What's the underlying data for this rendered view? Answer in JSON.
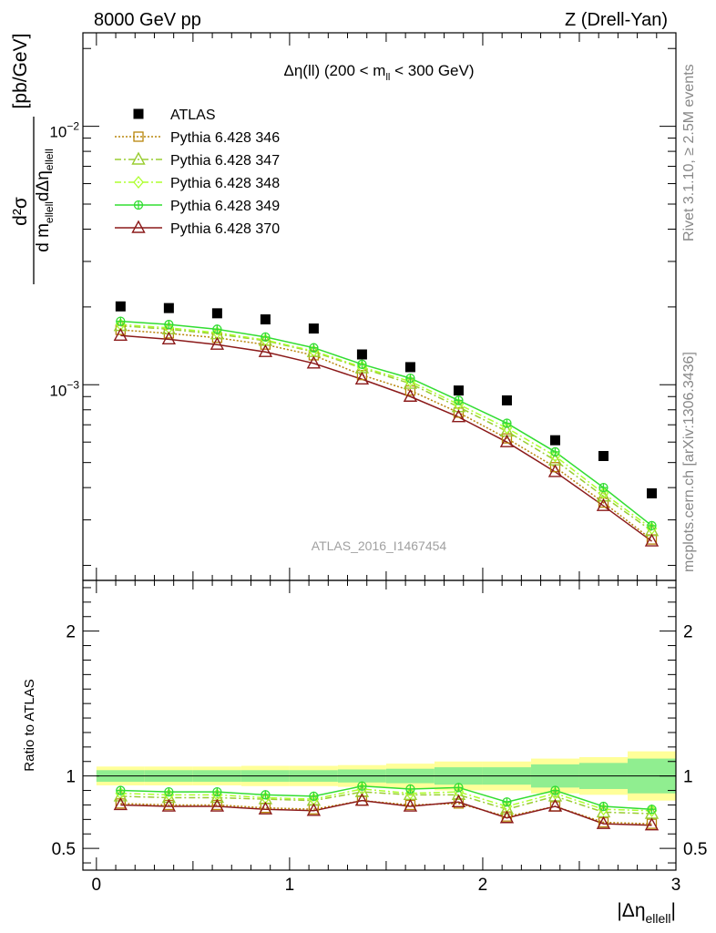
{
  "header": {
    "left": "8000 GeV pp",
    "right": "Z (Drell-Yan)"
  },
  "side_text": {
    "rivet": "Rivet 3.1.10, ≥ 2.5M events",
    "mcplots": "mcplots.cern.ch [arXiv:1306.3436]"
  },
  "chart_data": [
    {
      "type": "scatter",
      "title_parts": [
        "Δη(ll) (200 < m",
        "ll",
        " < 300 GeV)"
      ],
      "watermark": "ATLAS_2016_I1467454",
      "ylabel_parts": {
        "num": "d²σ",
        "den_prefix": "d m",
        "den_sub1": "ellell",
        "den_mid": "dΔη",
        "den_sub2": "ellell",
        "unit": "[pb/GeV]"
      },
      "y_scale": "log",
      "ylim": [
        0.000175,
        0.023
      ],
      "xlim": [
        -0.07,
        3.0
      ],
      "y_tick_labels": [
        {
          "base": "10",
          "exp": "−3",
          "value": 0.001
        },
        {
          "base": "10",
          "exp": "−2",
          "value": 0.01
        }
      ],
      "legend_position": "top-left",
      "x": [
        0.125,
        0.375,
        0.625,
        0.875,
        1.125,
        1.375,
        1.625,
        1.875,
        2.125,
        2.375,
        2.625,
        2.875
      ],
      "series": [
        {
          "name": "ATLAS",
          "color": "#000000",
          "marker": "square-filled",
          "line": "none",
          "values": [
            0.00201,
            0.00198,
            0.00189,
            0.00179,
            0.00165,
            0.00131,
            0.00117,
            0.00095,
            0.00087,
            0.00061,
            0.00053,
            0.00038
          ]
        },
        {
          "name": "Pythia 6.428 346",
          "color": "#b8860b",
          "marker": "square-open",
          "line": "dotted",
          "values": [
            0.00163,
            0.00158,
            0.00152,
            0.00143,
            0.0013,
            0.00109,
            0.00095,
            0.00078,
            0.00062,
            0.00048,
            0.00035,
            0.000252
          ]
        },
        {
          "name": "Pythia 6.428 347",
          "color": "#9acd32",
          "marker": "triangle-open",
          "line": "dashdot",
          "values": [
            0.00169,
            0.00164,
            0.00157,
            0.00148,
            0.00134,
            0.00116,
            0.00101,
            0.00082,
            0.00066,
            0.00051,
            0.00037,
            0.000272
          ]
        },
        {
          "name": "Pythia 6.428 348",
          "color": "#adff2f",
          "marker": "diamond-open",
          "line": "dashdot",
          "values": [
            0.00171,
            0.00166,
            0.00159,
            0.00149,
            0.00135,
            0.00117,
            0.00103,
            0.00084,
            0.00068,
            0.00053,
            0.00038,
            0.000278
          ]
        },
        {
          "name": "Pythia 6.428 349",
          "color": "#32dd32",
          "marker": "cross-circle",
          "line": "solid",
          "values": [
            0.00176,
            0.00171,
            0.00164,
            0.00153,
            0.00139,
            0.0012,
            0.00106,
            0.00087,
            0.00071,
            0.00055,
            0.0004,
            0.000285
          ]
        },
        {
          "name": "Pythia 6.428 370",
          "color": "#8b1a1a",
          "marker": "triangle-open",
          "line": "solid",
          "values": [
            0.00155,
            0.0015,
            0.00143,
            0.00134,
            0.00121,
            0.00105,
            0.0009,
            0.00075,
            0.0006,
            0.00046,
            0.00034,
            0.000248
          ]
        }
      ]
    },
    {
      "type": "line",
      "ylabel": "Ratio to ATLAS",
      "ylim": [
        0.35,
        2.35
      ],
      "xlim": [
        -0.07,
        3.0
      ],
      "y_tick_labels": [
        "0.5",
        "1",
        "2"
      ],
      "y_tick_values": [
        0.5,
        1,
        2
      ],
      "x_tick_labels": [
        "0",
        "1",
        "2",
        "3"
      ],
      "x_tick_values": [
        0,
        1,
        2,
        3
      ],
      "xlabel_parts": {
        "main": "|Δη",
        "sub": "ellell",
        "tail": "|"
      },
      "bin_edges": [
        0,
        0.25,
        0.5,
        0.75,
        1.0,
        1.25,
        1.5,
        1.75,
        2.0,
        2.25,
        2.5,
        2.75,
        3.0
      ],
      "band_inner": [
        0.04,
        0.04,
        0.04,
        0.04,
        0.04,
        0.045,
        0.05,
        0.06,
        0.06,
        0.08,
        0.09,
        0.12
      ],
      "band_outer": [
        0.065,
        0.065,
        0.065,
        0.07,
        0.07,
        0.075,
        0.085,
        0.1,
        0.1,
        0.12,
        0.13,
        0.17
      ],
      "band_inner_color": "#90ee90",
      "band_outer_color": "#ffff99",
      "x": [
        0.125,
        0.375,
        0.625,
        0.875,
        1.125,
        1.375,
        1.625,
        1.875,
        2.125,
        2.375,
        2.625,
        2.875
      ],
      "series": [
        {
          "name": "Pythia 6.428 346",
          "color": "#b8860b",
          "marker": "square-open",
          "line": "dotted",
          "values": [
            0.81,
            0.8,
            0.8,
            0.78,
            0.77,
            0.83,
            0.8,
            0.81,
            0.72,
            0.79,
            0.68,
            0.67
          ]
        },
        {
          "name": "Pythia 6.428 347",
          "color": "#9acd32",
          "marker": "triangle-open",
          "line": "dashdot",
          "values": [
            0.86,
            0.85,
            0.85,
            0.84,
            0.83,
            0.89,
            0.87,
            0.87,
            0.77,
            0.86,
            0.75,
            0.74
          ]
        },
        {
          "name": "Pythia 6.428 348",
          "color": "#adff2f",
          "marker": "diamond-open",
          "line": "dashdot",
          "values": [
            0.88,
            0.87,
            0.87,
            0.85,
            0.84,
            0.91,
            0.88,
            0.89,
            0.79,
            0.88,
            0.77,
            0.76
          ]
        },
        {
          "name": "Pythia 6.428 349",
          "color": "#32dd32",
          "marker": "cross-circle",
          "line": "solid",
          "values": [
            0.9,
            0.89,
            0.89,
            0.87,
            0.86,
            0.93,
            0.91,
            0.92,
            0.82,
            0.9,
            0.79,
            0.77
          ]
        },
        {
          "name": "Pythia 6.428 370",
          "color": "#8b1a1a",
          "marker": "triangle-open",
          "line": "solid",
          "values": [
            0.8,
            0.79,
            0.79,
            0.77,
            0.76,
            0.83,
            0.79,
            0.82,
            0.71,
            0.79,
            0.67,
            0.66
          ]
        }
      ]
    }
  ]
}
